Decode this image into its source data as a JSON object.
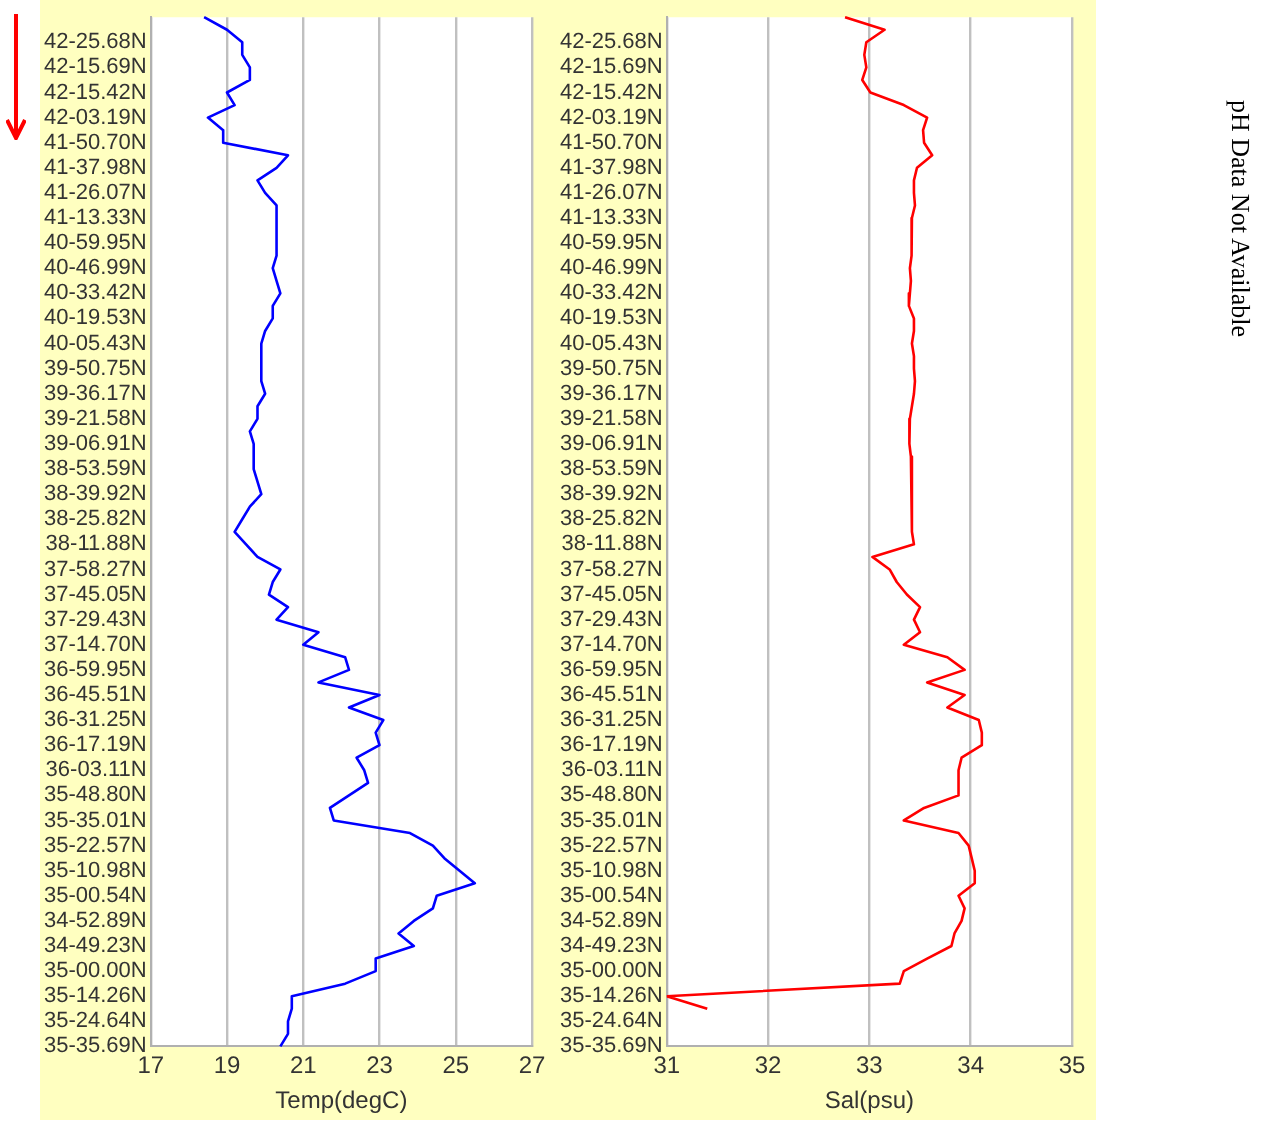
{
  "chart_data": [
    {
      "type": "line",
      "orientation": "horizontal",
      "xlabel": "Temp(degC)",
      "categories": [
        null,
        null,
        "42-25.68N",
        null,
        "42-15.69N",
        null,
        "42-15.42N",
        null,
        "42-03.19N",
        null,
        "41-50.70N",
        null,
        "41-37.98N",
        null,
        "41-26.07N",
        null,
        "41-13.33N",
        null,
        "40-59.95N",
        null,
        "40-46.99N",
        null,
        "40-33.42N",
        null,
        "40-19.53N",
        null,
        "40-05.43N",
        null,
        "39-50.75N",
        null,
        "39-36.17N",
        null,
        "39-21.58N",
        null,
        "39-06.91N",
        null,
        "38-53.59N",
        null,
        "38-39.92N",
        null,
        "38-25.82N",
        null,
        "38-11.88N",
        null,
        "37-58.27N",
        null,
        "37-45.05N",
        null,
        "37-29.43N",
        null,
        "37-14.70N",
        null,
        "36-59.95N",
        null,
        "36-45.51N",
        null,
        "36-31.25N",
        null,
        "36-17.19N",
        null,
        "36-03.11N",
        null,
        "35-48.80N",
        null,
        "35-35.01N",
        null,
        "35-22.57N",
        null,
        "35-10.98N",
        null,
        "35-00.54N",
        null,
        "34-52.89N",
        null,
        "34-49.23N",
        null,
        "35-00.00N",
        null,
        "35-14.26N",
        null,
        "35-24.64N",
        null,
        "35-35.69N"
      ],
      "values": [
        18.4,
        19.0,
        19.4,
        19.4,
        19.6,
        19.6,
        19.0,
        19.2,
        18.5,
        18.9,
        18.9,
        20.6,
        20.3,
        19.8,
        20.0,
        20.3,
        20.3,
        20.3,
        20.3,
        20.3,
        20.2,
        20.3,
        20.4,
        20.2,
        20.2,
        20.0,
        19.9,
        19.9,
        19.9,
        19.9,
        20.0,
        19.8,
        19.8,
        19.6,
        19.7,
        19.7,
        19.7,
        19.8,
        19.9,
        19.6,
        19.4,
        19.2,
        19.5,
        19.8,
        20.4,
        20.2,
        20.1,
        20.6,
        20.3,
        21.4,
        21.0,
        22.1,
        22.2,
        21.4,
        23.0,
        22.2,
        23.1,
        22.9,
        23.0,
        22.4,
        22.6,
        22.7,
        22.2,
        21.7,
        21.8,
        23.8,
        24.4,
        24.7,
        25.1,
        25.5,
        24.5,
        24.4,
        23.9,
        23.5,
        23.9,
        22.9,
        22.9,
        22.1,
        20.7,
        20.7,
        20.6,
        20.6,
        20.4
      ],
      "color": "#0000ff",
      "xlim": [
        17,
        27
      ],
      "xticks": [
        17,
        19,
        21,
        23,
        25,
        27
      ],
      "grid": "x",
      "marker": "none",
      "line_style": "solid"
    },
    {
      "type": "line",
      "orientation": "horizontal",
      "xlabel": "Sal(psu)",
      "categories": [
        null,
        null,
        "42-25.68N",
        null,
        "42-15.69N",
        null,
        "42-15.42N",
        null,
        "42-03.19N",
        null,
        "41-50.70N",
        null,
        "41-37.98N",
        null,
        "41-26.07N",
        null,
        "41-13.33N",
        null,
        "40-59.95N",
        null,
        "40-46.99N",
        null,
        "40-33.42N",
        null,
        "40-19.53N",
        null,
        "40-05.43N",
        null,
        "39-50.75N",
        null,
        "39-36.17N",
        null,
        "39-21.58N",
        null,
        "39-06.91N",
        null,
        "38-53.59N",
        null,
        "38-39.92N",
        null,
        "38-25.82N",
        null,
        "38-11.88N",
        null,
        "37-58.27N",
        null,
        "37-45.05N",
        null,
        "37-29.43N",
        null,
        "37-14.70N",
        null,
        "36-59.95N",
        null,
        "36-45.51N",
        null,
        "36-31.25N",
        null,
        "36-17.19N",
        null,
        "36-03.11N",
        null,
        "35-48.80N",
        null,
        "35-35.01N",
        null,
        "35-22.57N",
        null,
        "35-10.98N",
        null,
        "35-00.54N",
        null,
        "34-52.89N",
        null,
        "34-49.23N",
        null,
        "35-00.00N",
        null,
        "35-14.26N",
        null,
        "35-24.64N",
        null,
        "35-35.69N"
      ],
      "values": [
        32.76,
        33.15,
        32.97,
        32.95,
        32.97,
        32.93,
        33.01,
        33.34,
        33.57,
        33.53,
        33.54,
        33.62,
        33.47,
        33.44,
        33.44,
        33.45,
        33.42,
        33.42,
        33.42,
        33.41,
        33.4,
        33.41,
        33.4,
        33.39,
        33.44,
        33.44,
        33.42,
        33.44,
        33.44,
        33.45,
        33.44,
        33.42,
        33.4,
        33.39,
        33.4,
        33.41,
        33.42,
        33.42,
        33.42,
        33.42,
        33.42,
        33.42,
        33.44,
        33.03,
        33.2,
        33.27,
        33.37,
        33.5,
        33.44,
        33.5,
        33.34,
        33.77,
        33.94,
        33.57,
        33.94,
        33.77,
        34.08,
        34.11,
        34.11,
        33.91,
        33.88,
        33.88,
        33.88,
        33.54,
        33.34,
        33.88,
        33.98,
        34.01,
        34.04,
        34.04,
        33.88,
        33.94,
        33.91,
        33.84,
        33.81,
        33.57,
        33.34,
        33.3,
        31.0,
        31.4,
        null,
        null,
        null
      ],
      "color": "#ff0000",
      "xlim": [
        31,
        35
      ],
      "xticks": [
        31,
        32,
        33,
        34,
        35
      ],
      "grid": "x",
      "marker": "none",
      "line_style": "solid"
    },
    {
      "type": "other",
      "title": "pH Data Not Available"
    }
  ]
}
